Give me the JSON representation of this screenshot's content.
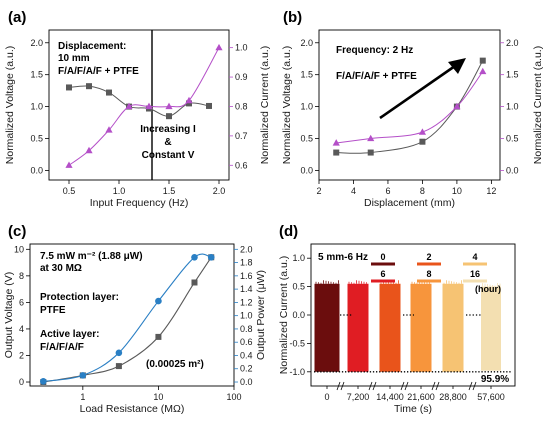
{
  "colors": {
    "gray": "#595959",
    "purple": "#b44fc8",
    "blue": "#2a7fc4",
    "black": "#000000"
  },
  "chart_data": [
    {
      "panel": "(a)",
      "type": "line",
      "xlabel": "Input Frequency (Hz)",
      "ylabel": "Normalized Voltage (a.u.)",
      "y2label": "Normalized Current (a.u.)",
      "xlim": [
        0.3,
        2.1
      ],
      "ylim": [
        -0.15,
        2.2
      ],
      "y2lim": [
        0.55,
        1.06
      ],
      "xticks": [
        0.5,
        1.0,
        1.5,
        2.0
      ],
      "xtick_labels": [
        "0.5",
        "1.0",
        "1.5",
        "2.0"
      ],
      "yticks": [
        0.0,
        0.5,
        1.0,
        1.5,
        2.0
      ],
      "ytick_labels": [
        "0.0",
        "0.5",
        "1.0",
        "1.5",
        "2.0"
      ],
      "y2ticks": [
        0.6,
        0.7,
        0.8,
        0.9,
        1.0
      ],
      "y2tick_labels": [
        "0.6",
        "0.7",
        "0.8",
        "0.9",
        "1.0"
      ],
      "series": [
        {
          "axis": "left",
          "marker": "square",
          "color": "#595959",
          "x": [
            0.5,
            0.7,
            0.9,
            1.1,
            1.3,
            1.5,
            1.7,
            1.9
          ],
          "values": [
            1.3,
            1.32,
            1.22,
            1.0,
            0.97,
            0.85,
            1.05,
            1.01
          ]
        },
        {
          "axis": "right",
          "marker": "triangle",
          "color": "#b44fc8",
          "x": [
            0.5,
            0.7,
            0.9,
            1.1,
            1.3,
            1.5,
            1.7,
            2.0
          ],
          "values": [
            0.6,
            0.65,
            0.72,
            0.8,
            0.8,
            0.8,
            0.82,
            1.0
          ]
        }
      ],
      "vline_x": 1.33,
      "annotations": [
        "Displacement:",
        "10 mm",
        "F/A/F/A/F + PTFE",
        "Increasing I",
        "&",
        "Constant V"
      ]
    },
    {
      "panel": "(b)",
      "type": "line",
      "xlabel": "Displacement (mm)",
      "ylabel": "Normalized Voltage (a.u.)",
      "y2label": "Normalized Current (a.u.)",
      "xlim": [
        2,
        12.5
      ],
      "ylim": [
        -0.15,
        2.2
      ],
      "y2lim": [
        -0.15,
        2.2
      ],
      "xticks": [
        2,
        4,
        6,
        8,
        10,
        12
      ],
      "xtick_labels": [
        "2",
        "4",
        "6",
        "8",
        "10",
        "12"
      ],
      "yticks": [
        0.0,
        0.5,
        1.0,
        1.5,
        2.0
      ],
      "ytick_labels": [
        "0.0",
        "0.5",
        "1.0",
        "1.5",
        "2.0"
      ],
      "y2ticks": [
        0.0,
        0.5,
        1.0,
        1.5,
        2.0
      ],
      "y2tick_labels": [
        "0.0",
        "0.5",
        "1.0",
        "1.5",
        "2.0"
      ],
      "series": [
        {
          "axis": "left",
          "marker": "square",
          "color": "#595959",
          "x": [
            3,
            5,
            8,
            10,
            11.5
          ],
          "values": [
            0.28,
            0.28,
            0.45,
            1.0,
            1.72
          ]
        },
        {
          "axis": "right",
          "marker": "triangle",
          "color": "#b44fc8",
          "x": [
            3,
            5,
            8,
            10,
            11.5
          ],
          "values": [
            0.43,
            0.5,
            0.6,
            1.0,
            1.55
          ]
        }
      ],
      "annotations": [
        "Frequency: 2 Hz",
        "F/A/F/A/F + PTFE"
      ]
    },
    {
      "panel": "(c)",
      "type": "line",
      "xlabel": "Load Resistance (MΩ)",
      "ylabel": "Output Voltage (V)",
      "y2label": "Output Power (μW)",
      "xscale": "log",
      "xlim": [
        0.2,
        100
      ],
      "ylim": [
        -0.3,
        10.4
      ],
      "y2lim": [
        -0.06,
        2.08
      ],
      "xticks": [
        1,
        10,
        100
      ],
      "xtick_labels": [
        "1",
        "10",
        "100"
      ],
      "yticks": [
        0,
        2,
        4,
        6,
        8,
        10
      ],
      "ytick_labels": [
        "0",
        "2",
        "4",
        "6",
        "8",
        "10"
      ],
      "y2ticks": [
        0.0,
        0.2,
        0.4,
        0.6,
        0.8,
        1.0,
        1.2,
        1.4,
        1.6,
        1.8,
        2.0
      ],
      "y2tick_labels": [
        "0.0",
        "0.2",
        "0.4",
        "0.6",
        "0.8",
        "1.0",
        "1.2",
        "1.4",
        "1.6",
        "1.8",
        "2.0"
      ],
      "series": [
        {
          "axis": "left",
          "marker": "square",
          "color": "#595959",
          "x": [
            0.3,
            1,
            3,
            10,
            30,
            50
          ],
          "values": [
            0.0,
            0.5,
            1.2,
            3.4,
            7.5,
            9.4
          ]
        },
        {
          "axis": "right",
          "marker": "circle",
          "color": "#2a7fc4",
          "x": [
            0.3,
            1,
            3,
            10,
            30,
            50
          ],
          "values": [
            0.01,
            0.1,
            0.44,
            1.22,
            1.88,
            1.88
          ]
        }
      ],
      "annotations": [
        "7.5 mW m⁻² (1.88 μW)",
        "at 30 MΩ",
        "Protection layer:",
        "PTFE",
        "Active layer:",
        "F/A/F/A/F",
        "(0.00025 m²)"
      ]
    },
    {
      "panel": "(d)",
      "type": "line",
      "xlabel": "Time (s)",
      "ylabel": "Normalized Current (a.u.)",
      "ylim": [
        -1.25,
        1.25
      ],
      "yticks": [
        -1.0,
        -0.5,
        0.0,
        0.5,
        1.0
      ],
      "ytick_labels": [
        "-1.0",
        "-0.5",
        "0.0",
        "0.5",
        "1.0"
      ],
      "xtick_labels": [
        "0",
        "7,200",
        "14,400",
        "21,600",
        "28,800",
        "57,600"
      ],
      "series": [
        {
          "name": "0",
          "color": "#6b0d0d",
          "peak": 0.55,
          "trough": -1.0
        },
        {
          "name": "2",
          "color": "#e9541b",
          "peak": 0.55,
          "trough": -1.0
        },
        {
          "name": "4",
          "color": "#f6c373",
          "peak": 0.55,
          "trough": -1.0
        },
        {
          "name": "6",
          "color": "#e01d23",
          "peak": 0.55,
          "trough": -1.0
        },
        {
          "name": "8",
          "color": "#f7953c",
          "peak": 0.55,
          "trough": -1.0
        },
        {
          "name": "16",
          "color": "#f3dfb1",
          "peak": 0.5,
          "trough": -0.98
        }
      ],
      "legend_title": "5 mm-6 Hz",
      "legend_unit": "(hour)",
      "retention_label": "95.9%"
    }
  ]
}
